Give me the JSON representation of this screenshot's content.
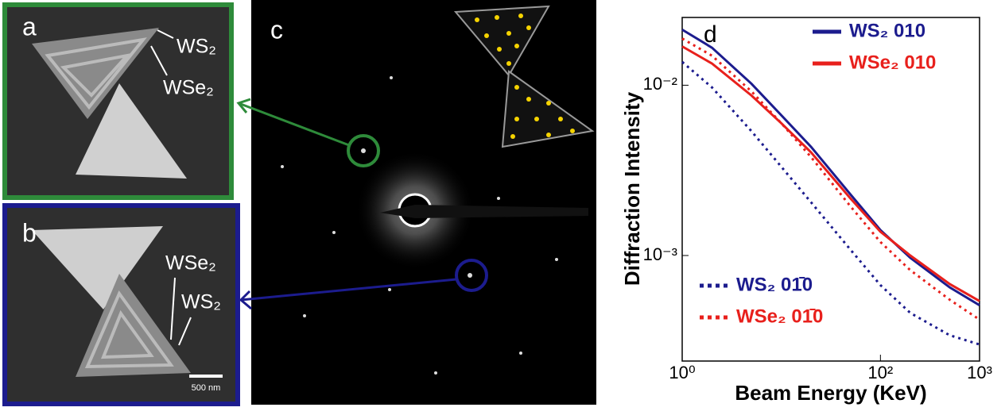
{
  "panels": {
    "a": {
      "label": "a",
      "annotations": [
        "WS₂",
        "WSe₂"
      ]
    },
    "b": {
      "label": "b",
      "annotations": [
        "WSe₂",
        "WS₂"
      ],
      "scale_bar": "500 nm"
    },
    "c": {
      "label": "c"
    }
  },
  "chart_data": {
    "type": "line",
    "label": "d",
    "x_label": "Beam Energy (KeV)",
    "y_label": "Diffraction Intensity",
    "x": [
      1,
      2,
      5,
      10,
      20,
      50,
      100,
      200,
      500,
      1000
    ],
    "series": [
      {
        "name": "WS₂ 010",
        "color": "#1c1c8e",
        "style": "solid",
        "legend": "top-right",
        "values": [
          0.0212,
          0.0166,
          0.0102,
          0.00666,
          0.00434,
          0.00228,
          0.00141,
          0.00097,
          0.00065,
          0.00051
        ]
      },
      {
        "name": "WSe₂ 010",
        "color": "#e8201c",
        "style": "solid",
        "legend": "top-right",
        "values": [
          0.0169,
          0.0134,
          0.0087,
          0.00598,
          0.00403,
          0.00216,
          0.00138,
          0.001,
          0.00068,
          0.00054
        ]
      },
      {
        "name": "WS₂ 01̄0",
        "color": "#1c1c8e",
        "style": "dotted",
        "legend": "bottom-left",
        "values": [
          0.0137,
          0.0097,
          0.00537,
          0.00332,
          0.00205,
          0.00108,
          0.00067,
          0.00046,
          0.00034,
          0.0003
        ]
      },
      {
        "name": "WSe₂ 01̄0",
        "color": "#e8201c",
        "style": "dotted",
        "legend": "bottom-left",
        "values": [
          0.0188,
          0.0149,
          0.0092,
          0.00598,
          0.00378,
          0.00194,
          0.0012,
          0.00082,
          0.00055,
          0.00042
        ]
      }
    ],
    "xlim": [
      1,
      1000
    ],
    "ylim": [
      0.00024,
      0.025
    ],
    "log_x": true,
    "log_y": true,
    "xticks": [
      {
        "value": 1,
        "label": "10⁰"
      },
      {
        "value": 100,
        "label": "10²"
      },
      {
        "value": 1000,
        "label": "10³"
      }
    ],
    "yticks": [
      {
        "value": 0.01,
        "label": "10⁻²"
      },
      {
        "value": 0.001,
        "label": "10⁻³"
      }
    ]
  }
}
